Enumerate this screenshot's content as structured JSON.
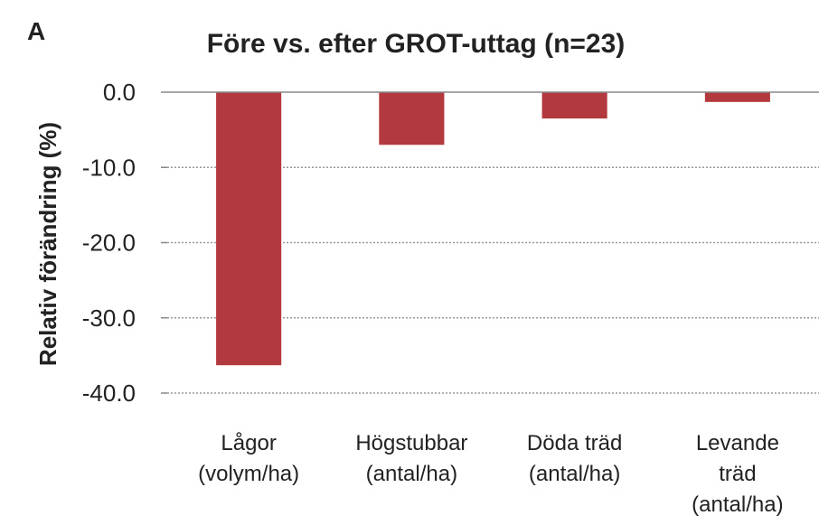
{
  "chart_data": {
    "type": "bar",
    "panel_label": "A",
    "title": "Före vs. efter GROT-uttag (n=23)",
    "y_label": "Relativ förändring (%)",
    "categories": [
      [
        "Lågor",
        "(volym/ha)"
      ],
      [
        "Högstubbar",
        "(antal/ha)"
      ],
      [
        "Döda träd",
        "(antal/ha)"
      ],
      [
        "Levande",
        "träd",
        "(antal/ha)"
      ]
    ],
    "values": [
      -36.3,
      -7.0,
      -3.5,
      -1.3
    ],
    "color": "#b23a3e",
    "ylim": [
      -40,
      0
    ],
    "yticks": [
      {
        "value": 0,
        "label": "0.0"
      },
      {
        "value": -10,
        "label": "-10.0"
      },
      {
        "value": -20,
        "label": "-20.0"
      },
      {
        "value": -30,
        "label": "-30.0"
      },
      {
        "value": -40,
        "label": "-40.0"
      }
    ],
    "grid": true
  }
}
